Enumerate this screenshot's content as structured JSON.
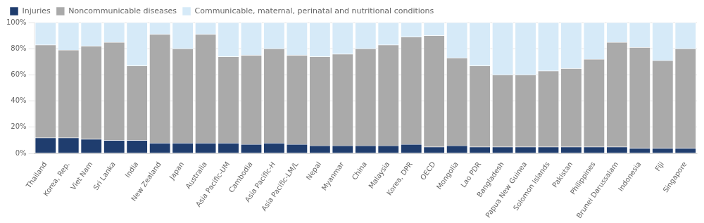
{
  "chart_data": {
    "type": "bar",
    "stacked": true,
    "categories": [
      "Thailand",
      "Korea, Rep.",
      "Viet Nam",
      "Sri Lanka",
      "India",
      "New Zealand",
      "Japan",
      "Australia",
      "Asia Pacific-UM",
      "Cambodia",
      "Asia Pacific-H",
      "Asia Pacific-LM/L",
      "Nepal",
      "Myanmar",
      "China",
      "Malaysia",
      "Korea, DPR",
      "OECD",
      "Mongolia",
      "Lao PDR",
      "Bangladesh",
      "Papua New Guinea",
      "Solomon Islands",
      "Pakistan",
      "Philippines",
      "Brunei Darussalam",
      "Indonesia",
      "Fiji",
      "Singapore"
    ],
    "series": [
      {
        "name": "Injuries",
        "color": "#1f3d6e",
        "values": [
          12,
          12,
          11,
          10,
          10,
          8,
          8,
          8,
          8,
          7,
          8,
          7,
          6,
          6,
          6,
          6,
          7,
          5,
          6,
          5,
          5,
          5,
          5,
          5,
          5,
          5,
          4,
          4,
          4
        ]
      },
      {
        "name": "Noncommunicable diseases",
        "color": "#aaaaaa",
        "values": [
          71,
          67,
          71,
          75,
          57,
          83,
          72,
          83,
          66,
          68,
          72,
          68,
          68,
          70,
          74,
          77,
          82,
          85,
          67,
          62,
          55,
          55,
          58,
          60,
          67,
          80,
          77,
          67,
          76
        ]
      },
      {
        "name": "Communicable, maternal, perinatal and nutritional conditions",
        "color": "#d6eaf8",
        "values": [
          17,
          21,
          18,
          15,
          33,
          9,
          20,
          9,
          26,
          25,
          20,
          25,
          26,
          24,
          20,
          17,
          11,
          10,
          27,
          33,
          40,
          40,
          37,
          35,
          28,
          15,
          19,
          29,
          20
        ]
      }
    ],
    "ylim": [
      0,
      100
    ],
    "yticks": [
      {
        "value": 0,
        "label": "0%"
      },
      {
        "value": 20,
        "label": "20%"
      },
      {
        "value": 40,
        "label": "40%"
      },
      {
        "value": 60,
        "label": "60%"
      },
      {
        "value": 80,
        "label": "80%"
      },
      {
        "value": 100,
        "label": "100%"
      }
    ],
    "grid": true,
    "legend": "top"
  }
}
